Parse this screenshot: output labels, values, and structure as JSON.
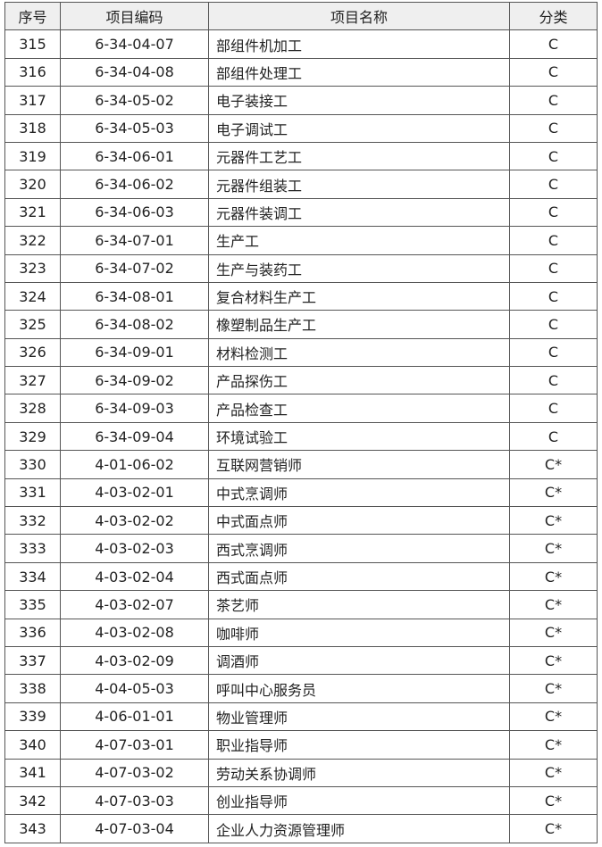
{
  "table": {
    "header": [
      "序号",
      "项目编码",
      "项目名称",
      "分类"
    ],
    "rows": [
      [
        315,
        "6-34-04-07",
        "部组件机加工",
        "C"
      ],
      [
        316,
        "6-34-04-08",
        "部组件处理工",
        "C"
      ],
      [
        317,
        "6-34-05-02",
        "电子装接工",
        "C"
      ],
      [
        318,
        "6-34-05-03",
        "电子调试工",
        "C"
      ],
      [
        319,
        "6-34-06-01",
        "元器件工艺工",
        "C"
      ],
      [
        320,
        "6-34-06-02",
        "元器件组装工",
        "C"
      ],
      [
        321,
        "6-34-06-03",
        "元器件装调工",
        "C"
      ],
      [
        322,
        "6-34-07-01",
        "生产工",
        "C"
      ],
      [
        323,
        "6-34-07-02",
        "生产与装药工",
        "C"
      ],
      [
        324,
        "6-34-08-01",
        "复合材料生产工",
        "C"
      ],
      [
        325,
        "6-34-08-02",
        "橡塑制品生产工",
        "C"
      ],
      [
        326,
        "6-34-09-01",
        "材料检测工",
        "C"
      ],
      [
        327,
        "6-34-09-02",
        "产品探伤工",
        "C"
      ],
      [
        328,
        "6-34-09-03",
        "产品检查工",
        "C"
      ],
      [
        329,
        "6-34-09-04",
        "环境试验工",
        "C"
      ],
      [
        330,
        "4-01-06-02",
        "互联网营销师",
        "C*"
      ],
      [
        331,
        "4-03-02-01",
        "中式烹调师",
        "C*"
      ],
      [
        332,
        "4-03-02-02",
        "中式面点师",
        "C*"
      ],
      [
        333,
        "4-03-02-03",
        "西式烹调师",
        "C*"
      ],
      [
        334,
        "4-03-02-04",
        "西式面点师",
        "C*"
      ],
      [
        335,
        "4-03-02-07",
        "茶艺师",
        "C*"
      ],
      [
        336,
        "4-03-02-08",
        "咖啡师",
        "C*"
      ],
      [
        337,
        "4-03-02-09",
        "调酒师",
        "C*"
      ],
      [
        338,
        "4-04-05-03",
        "呼叫中心服务员",
        "C*"
      ],
      [
        339,
        "4-06-01-01",
        "物业管理师",
        "C*"
      ],
      [
        340,
        "4-07-03-01",
        "职业指导师",
        "C*"
      ],
      [
        341,
        "4-07-03-02",
        "劳动关系协调师",
        "C*"
      ],
      [
        342,
        "4-07-03-03",
        "创业指导师",
        "C*"
      ],
      [
        343,
        "4-07-03-04",
        "企业人力资源管理师",
        "C*"
      ]
    ]
  }
}
